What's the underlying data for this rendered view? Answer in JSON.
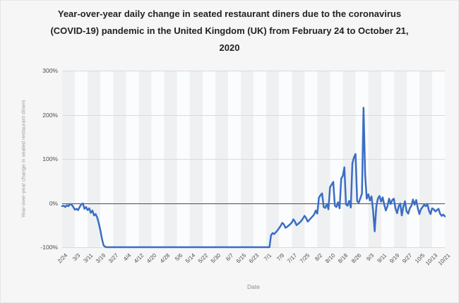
{
  "chart": {
    "title_lines": [
      "Year-over-year daily change in seated restaurant diners due to the coronavirus",
      "(COVID-19) pandemic in the United Kingdom (UK) from February 24 to October 21,",
      "2020"
    ],
    "colors": {
      "line": "#3a6ec5",
      "gridline": "#d9dadb",
      "zero_line": "#4d4d4d",
      "background": "#f6f6f7",
      "stripe_gray": "#eef0f1",
      "stripe_white": "#fbfcfd",
      "title_text": "#222222",
      "tick_text": "#4c4c4c",
      "axis_title_text": "#9b9b9b"
    }
  },
  "chart_data": {
    "type": "line",
    "title": "Year-over-year daily change in seated restaurant diners due to the coronavirus (COVID-19) pandemic in the United Kingdom (UK) from February 24 to October 21, 2020",
    "xlabel": "Date",
    "ylabel": "Year-over-year change in seated restaurant diners",
    "unit": "%",
    "ylim": [
      -100,
      300
    ],
    "y_tick_labels": [
      "300%",
      "200%",
      "100%",
      "0%",
      "-100%"
    ],
    "x_tick_labels": [
      "2/24",
      "3/3",
      "3/11",
      "3/19",
      "3/27",
      "4/4",
      "4/12",
      "4/20",
      "4/28",
      "5/6",
      "5/14",
      "5/22",
      "5/30",
      "6/7",
      "6/15",
      "6/23",
      "7/1",
      "7/9",
      "7/17",
      "7/25",
      "8/2",
      "8/10",
      "8/18",
      "8/26",
      "9/3",
      "9/11",
      "9/19",
      "9/27",
      "10/5",
      "10/13",
      "10/21"
    ],
    "x_start": "2/24/2020",
    "x_end": "10/21/2020",
    "frequency": "daily",
    "grid": "horizontal",
    "legend_position": "none",
    "series": [
      {
        "name": "Year-over-year change in seated restaurant diners (%)",
        "values": [
          -7,
          -6,
          -9,
          -5,
          -7,
          -2,
          -4,
          -9,
          -15,
          -13,
          -16,
          -9,
          -3,
          -1,
          -13,
          -9,
          -16,
          -12,
          -22,
          -17,
          -28,
          -25,
          -33,
          -46,
          -62,
          -82,
          -96,
          -99,
          -100,
          -100,
          -100,
          -100,
          -100,
          -100,
          -100,
          -100,
          -100,
          -100,
          -100,
          -100,
          -100,
          -100,
          -100,
          -100,
          -100,
          -100,
          -100,
          -100,
          -100,
          -100,
          -100,
          -100,
          -100,
          -100,
          -100,
          -100,
          -100,
          -100,
          -100,
          -100,
          -100,
          -100,
          -100,
          -100,
          -100,
          -100,
          -100,
          -100,
          -100,
          -100,
          -100,
          -100,
          -100,
          -100,
          -100,
          -100,
          -100,
          -100,
          -100,
          -100,
          -100,
          -100,
          -100,
          -100,
          -100,
          -100,
          -100,
          -100,
          -100,
          -100,
          -100,
          -100,
          -100,
          -100,
          -100,
          -100,
          -100,
          -100,
          -100,
          -100,
          -100,
          -100,
          -100,
          -100,
          -100,
          -100,
          -100,
          -100,
          -100,
          -100,
          -100,
          -100,
          -100,
          -100,
          -100,
          -100,
          -100,
          -100,
          -100,
          -100,
          -100,
          -100,
          -100,
          -100,
          -100,
          -100,
          -100,
          -100,
          -100,
          -100,
          -100,
          -73,
          -68,
          -70,
          -66,
          -62,
          -57,
          -52,
          -45,
          -48,
          -56,
          -54,
          -51,
          -48,
          -44,
          -37,
          -42,
          -50,
          -47,
          -44,
          -40,
          -35,
          -29,
          -34,
          -42,
          -38,
          -34,
          -30,
          -26,
          -17,
          -24,
          12,
          18,
          22,
          -9,
          -11,
          -2,
          -14,
          36,
          42,
          48,
          -6,
          -9,
          2,
          -12,
          55,
          62,
          81,
          -3,
          -6,
          5,
          -10,
          90,
          104,
          111,
          4,
          1,
          11,
          22,
          216,
          64,
          10,
          20,
          6,
          15,
          -18,
          -64,
          -8,
          10,
          16,
          3,
          13,
          -4,
          -17,
          -7,
          10,
          -2,
          7,
          10,
          -12,
          -23,
          -8,
          -1,
          -28,
          -7,
          4,
          -19,
          -24,
          -12,
          -6,
          8,
          -4,
          7,
          -11,
          -25,
          -14,
          -9,
          -4,
          -7,
          -2,
          -17,
          -25,
          -12,
          -14,
          -19,
          -16,
          -13,
          -24,
          -29,
          -26,
          -30
        ]
      }
    ]
  }
}
